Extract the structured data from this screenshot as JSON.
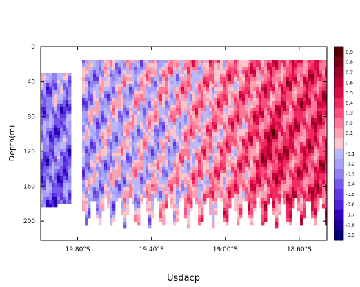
{
  "chart_data": {
    "type": "heatmap",
    "title": "",
    "xlabel": "Usdacp",
    "ylabel": "Depth(m)",
    "x_ticks": [
      "19.80°S",
      "19.40°S",
      "19.00°S",
      "18.60°S"
    ],
    "y_ticks": [
      "0",
      "40",
      "80",
      "120",
      "160",
      "200"
    ],
    "y_tick_values": [
      0,
      40,
      80,
      120,
      160,
      200
    ],
    "x_tick_values": [
      19.8,
      19.4,
      19.0,
      18.6
    ],
    "x_range_south_deg": [
      20.0,
      18.45
    ],
    "ylim": [
      0,
      222
    ],
    "y_reversed": true,
    "colorbar": {
      "levels": [
        0.9,
        0.8,
        0.7,
        0.6,
        0.5,
        0.4,
        0.3,
        0.2,
        0.1,
        0,
        -0.1,
        -0.2,
        -0.3,
        -0.4,
        -0.5,
        -0.6,
        -0.7,
        -0.8,
        -0.9
      ],
      "colors": [
        "#550000",
        "#7a0016",
        "#9e0028",
        "#c0003a",
        "#dd0a4a",
        "#ee2a60",
        "#f84e7a",
        "#fc7896",
        "#fda0b0",
        "#fdc4cc",
        "#b8b8f8",
        "#a8a0f8",
        "#9080f0",
        "#7858ea",
        "#6038e0",
        "#4e20d8",
        "#3000c0",
        "#1a0098",
        "#000070"
      ]
    },
    "series": [
      {
        "depth_range": [
          30,
          180
        ],
        "lat_range": [
          19.99,
          19.84
        ],
        "mean_value": -0.3
      },
      {
        "depth_range": [
          15,
          180
        ],
        "lat_range": [
          19.77,
          19.3
        ],
        "mean_value": -0.25
      },
      {
        "depth_range": [
          15,
          190
        ],
        "lat_range": [
          19.3,
          19.1
        ],
        "mean_value": -0.15
      },
      {
        "depth_range": [
          15,
          200
        ],
        "lat_range": [
          19.1,
          18.85
        ],
        "mean_value": 0.15
      },
      {
        "depth_range": [
          15,
          200
        ],
        "lat_range": [
          18.85,
          18.46
        ],
        "mean_value": 0.25
      }
    ]
  }
}
